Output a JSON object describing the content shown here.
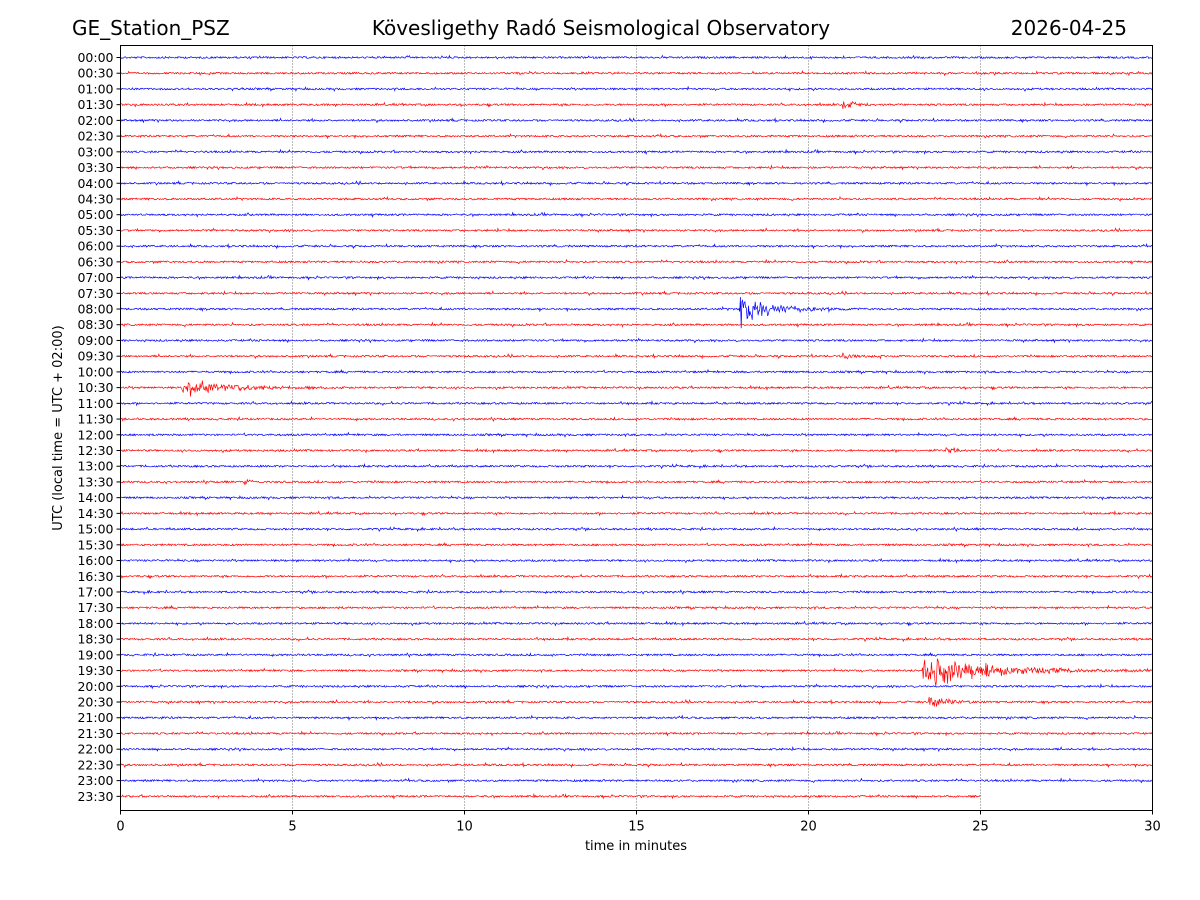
{
  "chart_data": {
    "type": "line",
    "title_left": "GE_Station_PSZ",
    "title_center": "Kövesligethy Radó Seismological Observatory",
    "title_right": "2026-04-25",
    "xlabel": "time in minutes",
    "ylabel": "UTC (local time = UTC + 02:00)",
    "xlim": [
      0,
      30
    ],
    "x_ticks": [
      "0",
      "5",
      "10",
      "15",
      "20",
      "25",
      "30"
    ],
    "x_tick_values": [
      0,
      5,
      10,
      15,
      20,
      25,
      30
    ],
    "grid": "vertical dotted",
    "colors": [
      "#0000ff",
      "#ff0000"
    ],
    "rows": [
      "00:00",
      "00:30",
      "01:00",
      "01:30",
      "02:00",
      "02:30",
      "03:00",
      "03:30",
      "04:00",
      "04:30",
      "05:00",
      "05:30",
      "06:00",
      "06:30",
      "07:00",
      "07:30",
      "08:00",
      "08:30",
      "09:00",
      "09:30",
      "10:00",
      "10:30",
      "11:00",
      "11:30",
      "12:00",
      "12:30",
      "13:00",
      "13:30",
      "14:00",
      "14:30",
      "15:00",
      "15:30",
      "16:00",
      "16:30",
      "17:00",
      "17:30",
      "18:00",
      "18:30",
      "19:00",
      "19:30",
      "20:00",
      "20:30",
      "21:00",
      "21:30",
      "22:00",
      "22:30",
      "23:00",
      "23:30"
    ],
    "last_row_end_minute": 25,
    "events": [
      {
        "row": "01:30",
        "start_min": 21.0,
        "duration_min": 1.2,
        "amplitude": 0.25
      },
      {
        "row": "08:00",
        "start_min": 18.0,
        "duration_min": 3.5,
        "amplitude": 1.0
      },
      {
        "row": "09:30",
        "start_min": 21.0,
        "duration_min": 1.5,
        "amplitude": 0.15
      },
      {
        "row": "10:30",
        "start_min": 1.8,
        "duration_min": 5.0,
        "amplitude": 0.55
      },
      {
        "row": "12:30",
        "start_min": 24.0,
        "duration_min": 0.8,
        "amplitude": 0.2
      },
      {
        "row": "13:30",
        "start_min": 3.6,
        "duration_min": 0.5,
        "amplitude": 0.25
      },
      {
        "row": "19:30",
        "start_min": 23.3,
        "duration_min": 6.5,
        "amplitude": 1.1
      },
      {
        "row": "20:30",
        "start_min": 23.5,
        "duration_min": 2.0,
        "amplitude": 0.35
      }
    ]
  }
}
